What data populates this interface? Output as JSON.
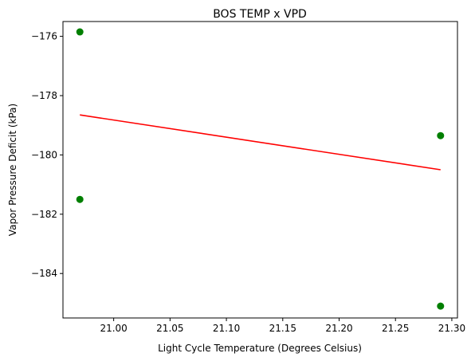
{
  "chart_data": {
    "type": "scatter",
    "title": "BOS TEMP x VPD",
    "xlabel": "Light Cycle Temperature (Degrees Celsius)",
    "ylabel": "Vapor Pressure Deficit (kPa)",
    "xlim": [
      20.955,
      21.305
    ],
    "ylim": [
      -185.5,
      -175.5
    ],
    "x_ticks": [
      "21.00",
      "21.05",
      "21.10",
      "21.15",
      "21.20",
      "21.25",
      "21.30"
    ],
    "y_ticks": [
      "−176",
      "−178",
      "−180",
      "−182",
      "−184"
    ],
    "grid": false,
    "points": [
      {
        "x": 20.97,
        "y": -175.85
      },
      {
        "x": 20.97,
        "y": -181.5
      },
      {
        "x": 21.29,
        "y": -179.35
      },
      {
        "x": 21.29,
        "y": -185.1
      }
    ],
    "trendline": {
      "x": [
        20.97,
        21.29
      ],
      "y": [
        -178.65,
        -180.5
      ]
    },
    "colors": {
      "points": "#007f00",
      "trendline": "#ff0000"
    }
  }
}
